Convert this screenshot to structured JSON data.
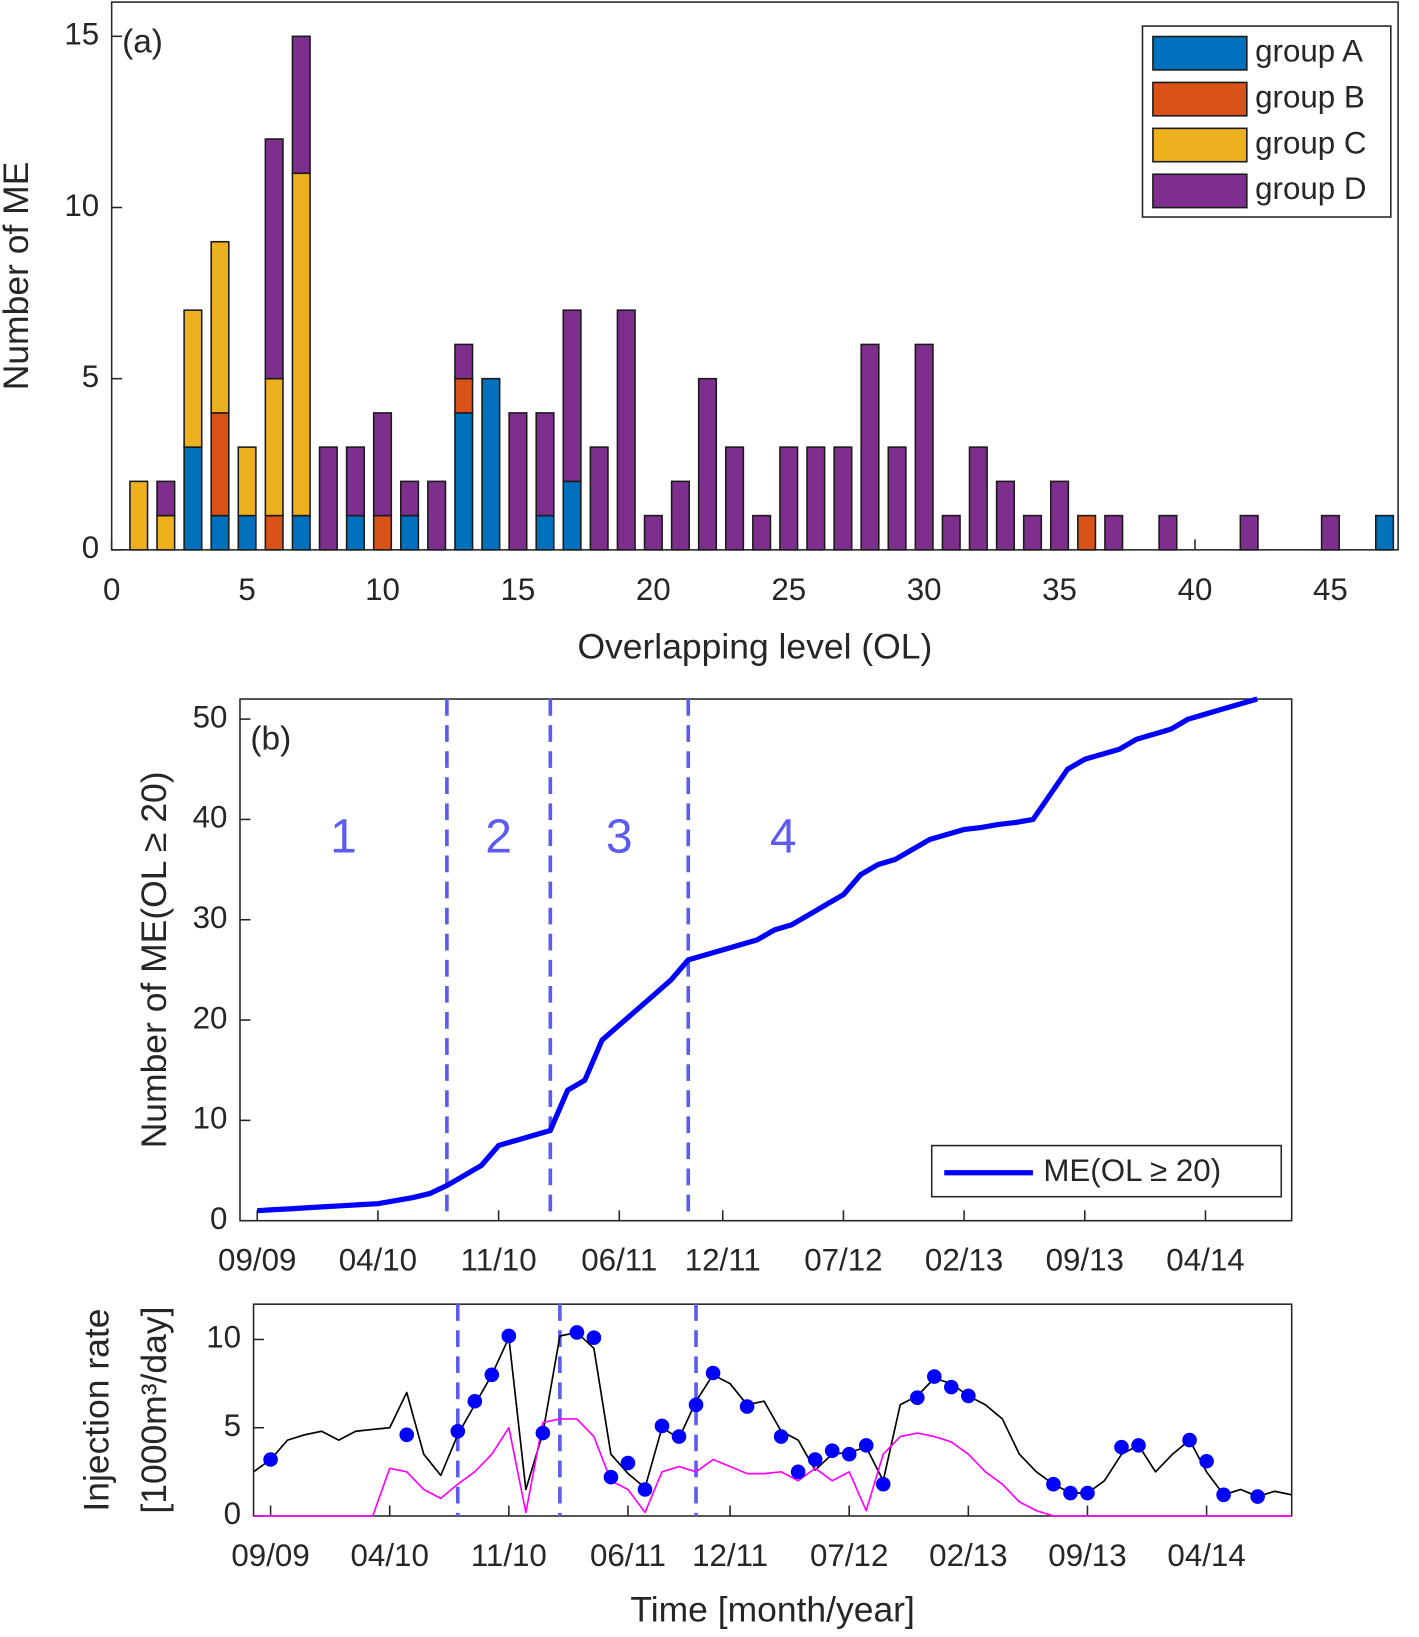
{
  "chart_data": [
    {
      "type": "bar",
      "panel_label": "(a)",
      "xlabel": "Overlapping level (OL)",
      "ylabel": "Number of ME",
      "x": [
        1,
        2,
        3,
        4,
        5,
        6,
        7,
        8,
        9,
        10,
        11,
        12,
        13,
        14,
        15,
        16,
        17,
        18,
        19,
        20,
        21,
        22,
        23,
        24,
        25,
        26,
        27,
        28,
        29,
        30,
        31,
        32,
        33,
        34,
        35,
        36,
        37,
        38,
        39,
        40,
        41,
        42,
        43,
        44,
        45,
        46,
        47
      ],
      "series": [
        {
          "name": "group A",
          "color": "#0072bd",
          "values": [
            0,
            0,
            3,
            1,
            1,
            0,
            1,
            0,
            1,
            0,
            1,
            0,
            4,
            5,
            0,
            1,
            2,
            0,
            0,
            0,
            0,
            0,
            0,
            0,
            0,
            0,
            0,
            0,
            0,
            0,
            0,
            0,
            0,
            0,
            0,
            0,
            0,
            0,
            0,
            0,
            0,
            0,
            0,
            0,
            0,
            0,
            1
          ]
        },
        {
          "name": "group B",
          "color": "#d95319",
          "values": [
            0,
            0,
            0,
            3,
            0,
            1,
            0,
            0,
            0,
            1,
            0,
            0,
            1,
            0,
            0,
            0,
            0,
            0,
            0,
            0,
            0,
            0,
            0,
            0,
            0,
            0,
            0,
            0,
            0,
            0,
            0,
            0,
            0,
            0,
            0,
            1,
            0,
            0,
            0,
            0,
            0,
            0,
            0,
            0,
            0,
            0,
            0
          ]
        },
        {
          "name": "group C",
          "color": "#edb120",
          "values": [
            2,
            1,
            4,
            5,
            2,
            4,
            10,
            0,
            0,
            0,
            0,
            0,
            0,
            0,
            0,
            0,
            0,
            0,
            0,
            0,
            0,
            0,
            0,
            0,
            0,
            0,
            0,
            0,
            0,
            0,
            0,
            0,
            0,
            0,
            0,
            0,
            0,
            0,
            0,
            0,
            0,
            0,
            0,
            0,
            0,
            0,
            0
          ]
        },
        {
          "name": "group D",
          "color": "#7e2f8e",
          "values": [
            0,
            1,
            0,
            0,
            0,
            7,
            4,
            3,
            2,
            3,
            1,
            2,
            1,
            0,
            4,
            3,
            5,
            3,
            7,
            1,
            2,
            5,
            3,
            1,
            3,
            3,
            3,
            6,
            3,
            6,
            1,
            3,
            2,
            1,
            2,
            0,
            1,
            0,
            1,
            0,
            0,
            1,
            0,
            0,
            1,
            0,
            0
          ]
        }
      ],
      "xlim": [
        0,
        47.5
      ],
      "xticks": [
        0,
        5,
        10,
        15,
        20,
        25,
        30,
        35,
        40,
        45
      ],
      "ylim": [
        0,
        16
      ],
      "yticks": [
        0,
        5,
        10,
        15
      ],
      "legend": "upper right"
    },
    {
      "type": "line",
      "panel_label": "(b)",
      "ylabel": "Number of ME(OL ≥ 20)",
      "x": [
        "09/09",
        "10/09",
        "11/09",
        "12/09",
        "01/10",
        "02/10",
        "03/10",
        "04/10",
        "05/10",
        "06/10",
        "07/10",
        "08/10",
        "09/10",
        "10/10",
        "11/10",
        "12/10",
        "01/11",
        "02/11",
        "03/11",
        "04/11",
        "05/11",
        "06/11",
        "07/11",
        "08/11",
        "09/11",
        "10/11",
        "11/11",
        "12/11",
        "01/12",
        "02/12",
        "03/12",
        "04/12",
        "05/12",
        "06/12",
        "07/12",
        "08/12",
        "09/12",
        "10/12",
        "11/12",
        "12/12",
        "01/13",
        "02/13",
        "03/13",
        "04/13",
        "05/13",
        "06/13",
        "07/13",
        "08/13",
        "09/13",
        "10/13",
        "11/13",
        "12/13",
        "01/14",
        "02/14",
        "03/14",
        "04/14",
        "05/14",
        "06/14",
        "07/14"
      ],
      "series": [
        {
          "name": "ME(OL ≥ 20)",
          "color": "#0000ff",
          "values": [
            1,
            1.1,
            1.2,
            1.3,
            1.4,
            1.5,
            1.6,
            1.7,
            2,
            2.3,
            2.7,
            3.5,
            4.5,
            5.5,
            7.5,
            8,
            8.5,
            9,
            13,
            14,
            18,
            19.5,
            21,
            22.5,
            24,
            26,
            26.5,
            27,
            27.5,
            28,
            29,
            29.5,
            30.5,
            31.5,
            32.5,
            34.5,
            35.5,
            36,
            37,
            38,
            38.5,
            39,
            39.2,
            39.5,
            39.7,
            40,
            42.5,
            45,
            46,
            46.5,
            47,
            48,
            48.5,
            49,
            50,
            50.5,
            51,
            51.5,
            52
          ]
        }
      ],
      "vlines": [
        "08/10",
        "02/11",
        "10/11"
      ],
      "vline_color": "#5c5cf0",
      "regions": [
        "1",
        "2",
        "3",
        "4"
      ],
      "xlim": [
        "08/09",
        "09/14"
      ],
      "xticks": [
        "09/09",
        "04/10",
        "11/10",
        "06/11",
        "12/11",
        "07/12",
        "02/13",
        "09/13",
        "04/14"
      ],
      "ylim": [
        0,
        52
      ],
      "yticks": [
        0,
        10,
        20,
        30,
        40,
        50
      ],
      "legend": "lower right"
    },
    {
      "type": "line",
      "xlabel": "Time [month/year]",
      "ylabel": [
        "Injection rate",
        "[1000m³/day]"
      ],
      "x": [
        "08/09",
        "09/09",
        "10/09",
        "11/09",
        "12/09",
        "01/10",
        "02/10",
        "03/10",
        "04/10",
        "05/10",
        "06/10",
        "07/10",
        "08/10",
        "09/10",
        "10/10",
        "11/10",
        "12/10",
        "01/11",
        "02/11",
        "03/11",
        "04/11",
        "05/11",
        "06/11",
        "07/11",
        "08/11",
        "09/11",
        "10/11",
        "11/11",
        "12/11",
        "01/12",
        "02/12",
        "03/12",
        "04/12",
        "05/12",
        "06/12",
        "07/12",
        "08/12",
        "09/12",
        "10/12",
        "11/12",
        "12/12",
        "01/13",
        "02/13",
        "03/13",
        "04/13",
        "05/13",
        "06/13",
        "07/13",
        "08/13",
        "09/13",
        "10/13",
        "11/13",
        "12/13",
        "01/14",
        "02/14",
        "03/14",
        "04/14",
        "05/14",
        "06/14",
        "07/14",
        "08/14",
        "09/14"
      ],
      "series": [
        {
          "color": "#000000",
          "values": [
            2.5,
            3.2,
            4.3,
            4.6,
            4.8,
            4.3,
            4.8,
            4.9,
            5,
            7.0,
            3.5,
            2.3,
            4.6,
            6.3,
            8,
            10.1,
            1.5,
            4.7,
            10.2,
            10.4,
            9.5,
            3.5,
            2.4,
            1.6,
            5,
            4.4,
            6.5,
            8,
            7.5,
            6.3,
            6.5,
            4.8,
            4.3,
            2.6,
            3.5,
            3.6,
            3.9,
            2.0,
            6.3,
            6.8,
            7.8,
            7.5,
            6.8,
            6.3,
            5.5,
            3.5,
            2.5,
            1.8,
            1.3,
            1.3,
            2,
            3.5,
            4,
            2.5,
            3.5,
            4.3,
            2.5,
            1.2,
            1.5,
            1.1,
            1.4,
            1.2
          ]
        },
        {
          "color": "#ff00ff",
          "values": [
            0,
            0,
            0,
            0,
            0,
            0,
            0,
            0,
            2.7,
            2.5,
            1.5,
            1,
            1.8,
            2.5,
            3.5,
            5,
            0.2,
            5.3,
            5.5,
            5.5,
            4.5,
            2,
            1.5,
            0.2,
            2.5,
            2.8,
            2.5,
            3.2,
            2.8,
            2.4,
            2.4,
            2.5,
            2,
            2.7,
            2,
            2.5,
            0.3,
            3.5,
            4.5,
            4.7,
            4.5,
            4.2,
            3.5,
            2.5,
            1.8,
            0.8,
            0.3,
            0,
            0,
            0,
            0,
            0,
            0,
            0,
            0,
            0,
            0,
            0,
            0,
            0,
            0,
            0
          ]
        },
        {
          "type": "scatter",
          "color": "#0000ff",
          "x": [
            "09/09",
            "05/10",
            "08/10",
            "09/10",
            "10/10",
            "11/10",
            "01/11",
            "03/11",
            "04/11",
            "05/11",
            "06/11",
            "07/11",
            "08/11",
            "09/11",
            "10/11",
            "11/11",
            "01/12",
            "03/12",
            "04/12",
            "05/12",
            "06/12",
            "07/12",
            "08/12",
            "09/12",
            "11/12",
            "12/12",
            "01/13",
            "02/13",
            "07/13",
            "08/13",
            "09/13",
            "11/13",
            "12/13",
            "03/14",
            "04/14",
            "05/14",
            "07/14"
          ],
          "values": [
            3.2,
            4.6,
            4.8,
            6.5,
            8,
            10.2,
            4.7,
            10.4,
            10.1,
            2.2,
            3,
            1.5,
            5.1,
            4.5,
            6.3,
            8.1,
            6.2,
            4.5,
            2.5,
            3.2,
            3.7,
            3.5,
            4,
            1.8,
            6.7,
            7.9,
            7.3,
            6.8,
            1.8,
            1.3,
            1.3,
            3.9,
            4,
            4.3,
            3.1,
            1.2,
            1.1
          ]
        }
      ],
      "vlines": [
        "08/10",
        "02/11",
        "10/11"
      ],
      "vline_color": "#5c5cf0",
      "xlim": [
        "08/09",
        "09/14"
      ],
      "xticks": [
        "09/09",
        "04/10",
        "11/10",
        "06/11",
        "12/11",
        "07/12",
        "02/13",
        "09/13",
        "04/14"
      ],
      "ylim": [
        0,
        12
      ],
      "yticks": [
        0,
        5,
        10
      ]
    }
  ]
}
